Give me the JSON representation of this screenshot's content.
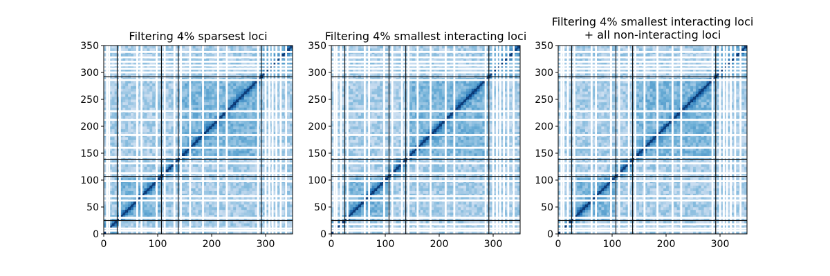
{
  "figure": {
    "background": "#ffffff"
  },
  "chart_data": [
    {
      "type": "heatmap",
      "title": "Filtering 4% sparsest loci",
      "title_lines": [
        "Filtering 4% sparsest loci"
      ],
      "xlim": [
        0,
        350
      ],
      "ylim": [
        0,
        350
      ],
      "xticks": [
        0,
        100,
        200,
        300
      ],
      "yticks": [
        0,
        50,
        100,
        150,
        200,
        250,
        300,
        350
      ],
      "colormap": "Blues",
      "boundaries": [
        25,
        107,
        138,
        292
      ],
      "filtered_bands": [
        6,
        10,
        30,
        62,
        70,
        98,
        113,
        131,
        143,
        160,
        184,
        212,
        228,
        286,
        300,
        307,
        313,
        320,
        328,
        338
      ]
    },
    {
      "type": "heatmap",
      "title": "Filtering 4% smallest interacting loci",
      "title_lines": [
        "Filtering 4% smallest interacting loci"
      ],
      "xlim": [
        0,
        350
      ],
      "ylim": [
        0,
        350
      ],
      "xticks": [
        0,
        100,
        200,
        300
      ],
      "yticks": [
        0,
        50,
        100,
        150,
        200,
        250,
        300,
        350
      ],
      "colormap": "Blues",
      "boundaries": [
        25,
        107,
        138,
        292
      ],
      "filtered_bands": [
        6,
        10,
        18,
        30,
        62,
        70,
        98,
        113,
        131,
        143,
        160,
        184,
        212,
        228,
        286,
        300,
        307,
        313,
        320,
        328,
        338
      ]
    },
    {
      "type": "heatmap",
      "title": "Filtering 4% smallest interacting loci\n+ all non-interacting loci",
      "title_lines": [
        "Filtering 4% smallest interacting loci",
        "+ all non-interacting loci"
      ],
      "xlim": [
        0,
        350
      ],
      "ylim": [
        0,
        350
      ],
      "xticks": [
        0,
        100,
        200,
        300
      ],
      "yticks": [
        0,
        50,
        100,
        150,
        200,
        250,
        300,
        350
      ],
      "colormap": "Blues",
      "boundaries": [
        25,
        107,
        138,
        292
      ],
      "filtered_bands": [
        6,
        10,
        18,
        30,
        62,
        70,
        98,
        113,
        131,
        143,
        160,
        184,
        212,
        228,
        286,
        300,
        307,
        313,
        320,
        328,
        338
      ]
    }
  ]
}
